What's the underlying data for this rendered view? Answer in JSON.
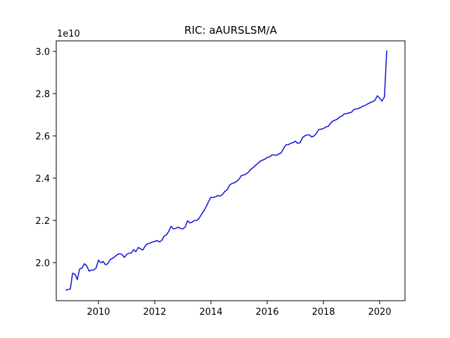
{
  "chart_data": {
    "type": "line",
    "title": "RIC: aAURSLSM/A",
    "y_offset_label": "1e10",
    "y_scale": 10000000000,
    "xlim": [
      2008.5,
      2020.9
    ],
    "ylim": [
      1.82,
      3.05
    ],
    "x_ticks": [
      2010,
      2012,
      2014,
      2016,
      2018,
      2020
    ],
    "x_tick_labels": [
      "2010",
      "2012",
      "2014",
      "2016",
      "2018",
      "2020"
    ],
    "y_ticks": [
      2.0,
      2.2,
      2.4,
      2.6,
      2.8,
      3.0
    ],
    "y_tick_labels": [
      "2.0",
      "2.2",
      "2.4",
      "2.6",
      "2.8",
      "3.0"
    ],
    "grid": false,
    "series": [
      {
        "color": "#1f1fd8",
        "x": [
          2008.83,
          2009.0,
          2009.08,
          2009.17,
          2009.25,
          2009.33,
          2009.42,
          2009.5,
          2009.58,
          2009.67,
          2009.75,
          2009.83,
          2009.92,
          2010.0,
          2010.08,
          2010.17,
          2010.25,
          2010.33,
          2010.42,
          2010.5,
          2010.58,
          2010.67,
          2010.75,
          2010.83,
          2010.92,
          2011.0,
          2011.08,
          2011.17,
          2011.25,
          2011.33,
          2011.42,
          2011.5,
          2011.58,
          2011.67,
          2011.75,
          2011.83,
          2011.92,
          2012.0,
          2012.08,
          2012.17,
          2012.25,
          2012.33,
          2012.42,
          2012.5,
          2012.58,
          2012.67,
          2012.75,
          2012.83,
          2012.92,
          2013.0,
          2013.08,
          2013.17,
          2013.25,
          2013.33,
          2013.42,
          2013.5,
          2013.58,
          2013.67,
          2013.75,
          2013.83,
          2013.92,
          2014.0,
          2014.08,
          2014.17,
          2014.25,
          2014.33,
          2014.42,
          2014.5,
          2014.58,
          2014.67,
          2014.75,
          2014.83,
          2014.92,
          2015.0,
          2015.08,
          2015.17,
          2015.25,
          2015.33,
          2015.42,
          2015.5,
          2015.58,
          2015.67,
          2015.75,
          2015.83,
          2015.92,
          2016.0,
          2016.08,
          2016.17,
          2016.25,
          2016.33,
          2016.42,
          2016.5,
          2016.58,
          2016.67,
          2016.75,
          2016.83,
          2016.92,
          2017.0,
          2017.08,
          2017.17,
          2017.25,
          2017.33,
          2017.42,
          2017.5,
          2017.58,
          2017.67,
          2017.75,
          2017.83,
          2017.92,
          2018.0,
          2018.08,
          2018.17,
          2018.25,
          2018.33,
          2018.42,
          2018.5,
          2018.58,
          2018.67,
          2018.75,
          2018.83,
          2018.92,
          2019.0,
          2019.08,
          2019.17,
          2019.25,
          2019.33,
          2019.42,
          2019.5,
          2019.58,
          2019.67,
          2019.75,
          2019.83,
          2019.92,
          2020.0,
          2020.08,
          2020.17,
          2020.25
        ],
        "y": [
          1.87,
          1.875,
          1.95,
          1.945,
          1.92,
          1.97,
          1.975,
          1.995,
          1.985,
          1.96,
          1.965,
          1.965,
          1.975,
          2.012,
          2.0,
          2.005,
          1.99,
          1.995,
          2.015,
          2.02,
          2.028,
          2.038,
          2.042,
          2.04,
          2.025,
          2.038,
          2.045,
          2.045,
          2.062,
          2.052,
          2.072,
          2.065,
          2.06,
          2.08,
          2.09,
          2.092,
          2.098,
          2.1,
          2.105,
          2.098,
          2.105,
          2.125,
          2.132,
          2.148,
          2.172,
          2.16,
          2.162,
          2.168,
          2.162,
          2.16,
          2.168,
          2.198,
          2.188,
          2.192,
          2.2,
          2.2,
          2.21,
          2.23,
          2.245,
          2.265,
          2.29,
          2.31,
          2.308,
          2.312,
          2.318,
          2.315,
          2.325,
          2.338,
          2.345,
          2.368,
          2.375,
          2.378,
          2.385,
          2.395,
          2.412,
          2.415,
          2.42,
          2.428,
          2.442,
          2.45,
          2.46,
          2.47,
          2.48,
          2.485,
          2.49,
          2.498,
          2.5,
          2.51,
          2.51,
          2.508,
          2.515,
          2.52,
          2.54,
          2.558,
          2.558,
          2.565,
          2.568,
          2.575,
          2.565,
          2.568,
          2.59,
          2.6,
          2.605,
          2.605,
          2.595,
          2.6,
          2.612,
          2.63,
          2.632,
          2.635,
          2.642,
          2.645,
          2.66,
          2.67,
          2.675,
          2.68,
          2.69,
          2.695,
          2.705,
          2.705,
          2.71,
          2.712,
          2.725,
          2.728,
          2.73,
          2.735,
          2.742,
          2.745,
          2.752,
          2.758,
          2.762,
          2.768,
          2.79,
          2.778,
          2.765,
          2.785,
          3.005
        ]
      }
    ]
  }
}
